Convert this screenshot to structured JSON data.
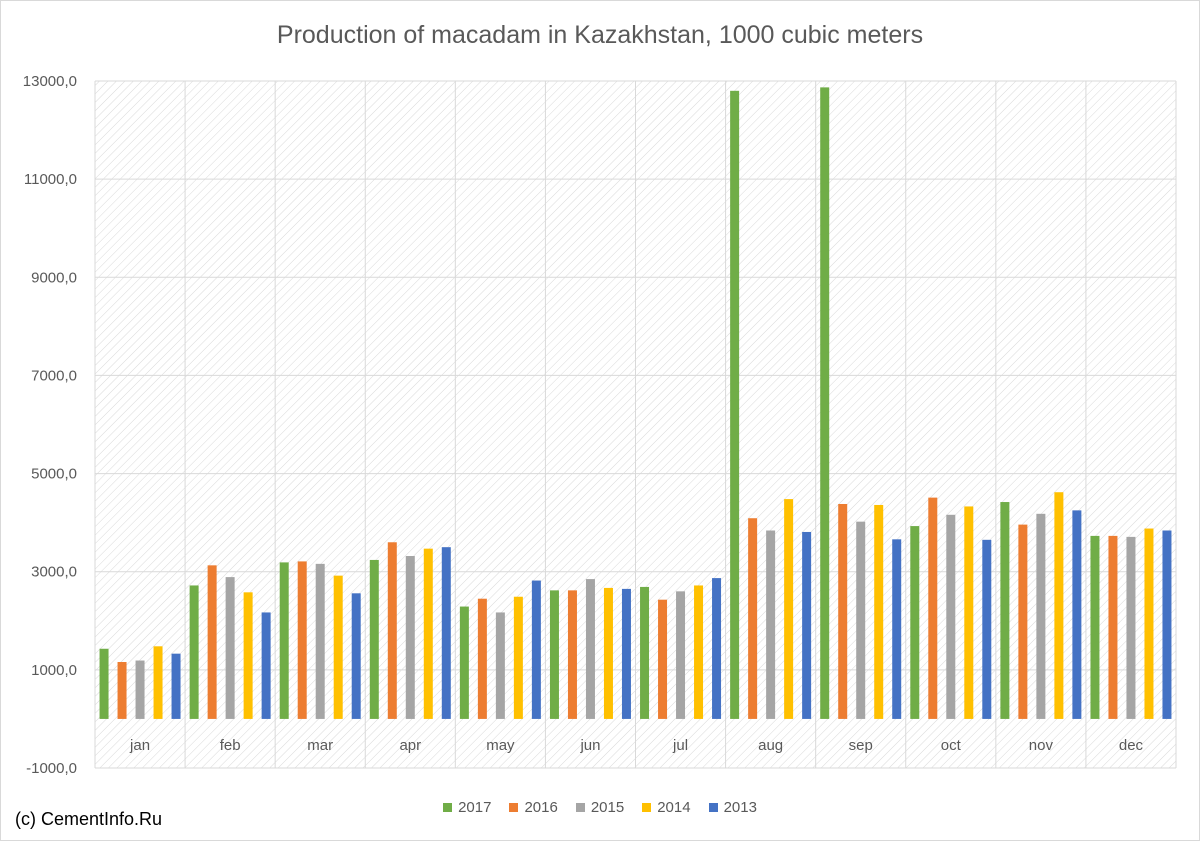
{
  "chart_data": {
    "type": "bar",
    "title": "Production of macadam in Kazakhstan, 1000 cubic meters",
    "categories": [
      "jan",
      "feb",
      "mar",
      "apr",
      "may",
      "jun",
      "jul",
      "aug",
      "sep",
      "oct",
      "nov",
      "dec"
    ],
    "ylim": [
      -1000,
      13000
    ],
    "yticks": [
      "13000,0",
      "11000,0",
      "9000,0",
      "7000,0",
      "5000,0",
      "3000,0",
      "1000,0",
      "-1000,0"
    ],
    "ytick_values": [
      13000,
      11000,
      9000,
      7000,
      5000,
      3000,
      1000,
      -1000
    ],
    "grid": true,
    "legend_position": "bottom",
    "series": [
      {
        "name": "2017",
        "color": "#70ad47",
        "values": [
          1430,
          2720,
          3190,
          3240,
          2290,
          2620,
          2690,
          12800,
          12870,
          3930,
          4420,
          3730
        ]
      },
      {
        "name": "2016",
        "color": "#ed7d31",
        "values": [
          1160,
          3130,
          3210,
          3600,
          2450,
          2620,
          2430,
          4090,
          4380,
          4510,
          3960,
          3730
        ]
      },
      {
        "name": "2015",
        "color": "#a5a5a5",
        "values": [
          1190,
          2890,
          3160,
          3320,
          2170,
          2850,
          2600,
          3840,
          4020,
          4160,
          4180,
          3710
        ]
      },
      {
        "name": "2014",
        "color": "#ffc000",
        "values": [
          1480,
          2580,
          2920,
          3470,
          2490,
          2670,
          2720,
          4480,
          4360,
          4330,
          4620,
          3880
        ]
      },
      {
        "name": "2013",
        "color": "#4472c4",
        "values": [
          1330,
          2170,
          2560,
          3500,
          2820,
          2650,
          2870,
          3810,
          3660,
          3650,
          4250,
          3840
        ]
      }
    ]
  },
  "credit": "(c) CementInfo.Ru"
}
